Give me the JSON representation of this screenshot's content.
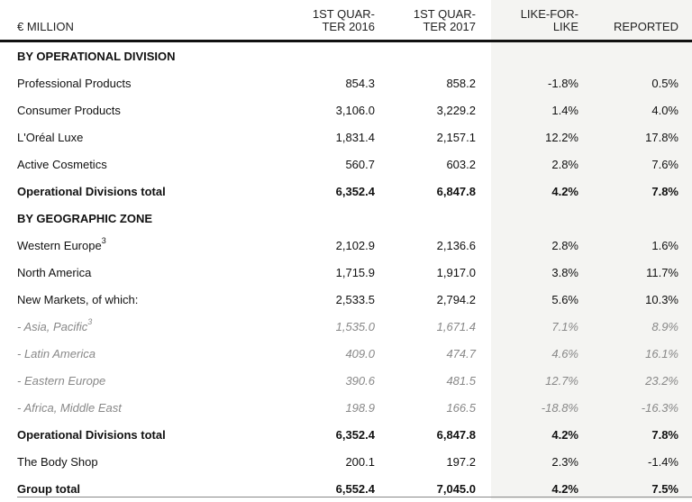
{
  "headers": {
    "label": "€ MILLION",
    "q1_2016_line1": "1ST QUAR-",
    "q1_2016_line2": "TER 2016",
    "q1_2017_line1": "1ST QUAR-",
    "q1_2017_line2": "TER 2017",
    "lfl_line1": "LIKE-FOR-",
    "lfl_line2": "LIKE",
    "reported": "REPORTED"
  },
  "sections": {
    "operational": "BY OPERATIONAL DIVISION",
    "geographic": "BY GEOGRAPHIC ZONE"
  },
  "rows": [
    {
      "label": "Professional Products",
      "q2016": "854.3",
      "q2017": "858.2",
      "lfl": "-1.8%",
      "reported": "0.5%"
    },
    {
      "label": "Consumer Products",
      "q2016": "3,106.0",
      "q2017": "3,229.2",
      "lfl": "1.4%",
      "reported": "4.0%"
    },
    {
      "label": "L'Oréal Luxe",
      "q2016": "1,831.4",
      "q2017": "2,157.1",
      "lfl": "12.2%",
      "reported": "17.8%"
    },
    {
      "label": "Active Cosmetics",
      "q2016": "560.7",
      "q2017": "603.2",
      "lfl": "2.8%",
      "reported": "7.6%"
    },
    {
      "label": "Operational Divisions total",
      "q2016": "6,352.4",
      "q2017": "6,847.8",
      "lfl": "4.2%",
      "reported": "7.8%"
    },
    {
      "label": "Western Europe",
      "sup": "3",
      "q2016": "2,102.9",
      "q2017": "2,136.6",
      "lfl": "2.8%",
      "reported": "1.6%"
    },
    {
      "label": "North America",
      "q2016": "1,715.9",
      "q2017": "1,917.0",
      "lfl": "3.8%",
      "reported": "11.7%"
    },
    {
      "label": "New Markets, of which:",
      "q2016": "2,533.5",
      "q2017": "2,794.2",
      "lfl": "5.6%",
      "reported": "10.3%"
    },
    {
      "label": "- Asia, Pacific",
      "sup": "3",
      "q2016": "1,535.0",
      "q2017": "1,671.4",
      "lfl": "7.1%",
      "reported": "8.9%"
    },
    {
      "label": "- Latin America",
      "q2016": "409.0",
      "q2017": "474.7",
      "lfl": "4.6%",
      "reported": "16.1%"
    },
    {
      "label": "- Eastern Europe",
      "q2016": "390.6",
      "q2017": "481.5",
      "lfl": "12.7%",
      "reported": "23.2%"
    },
    {
      "label": "- Africa, Middle East",
      "q2016": "198.9",
      "q2017": "166.5",
      "lfl": "-18.8%",
      "reported": "-16.3%"
    },
    {
      "label": "Operational Divisions total",
      "q2016": "6,352.4",
      "q2017": "6,847.8",
      "lfl": "4.2%",
      "reported": "7.8%"
    },
    {
      "label": "The Body Shop",
      "q2016": "200.1",
      "q2017": "197.2",
      "lfl": "2.3%",
      "reported": "-1.4%"
    },
    {
      "label": "Group total",
      "q2016": "6,552.4",
      "q2017": "7,045.0",
      "lfl": "4.2%",
      "reported": "7.5%"
    }
  ]
}
